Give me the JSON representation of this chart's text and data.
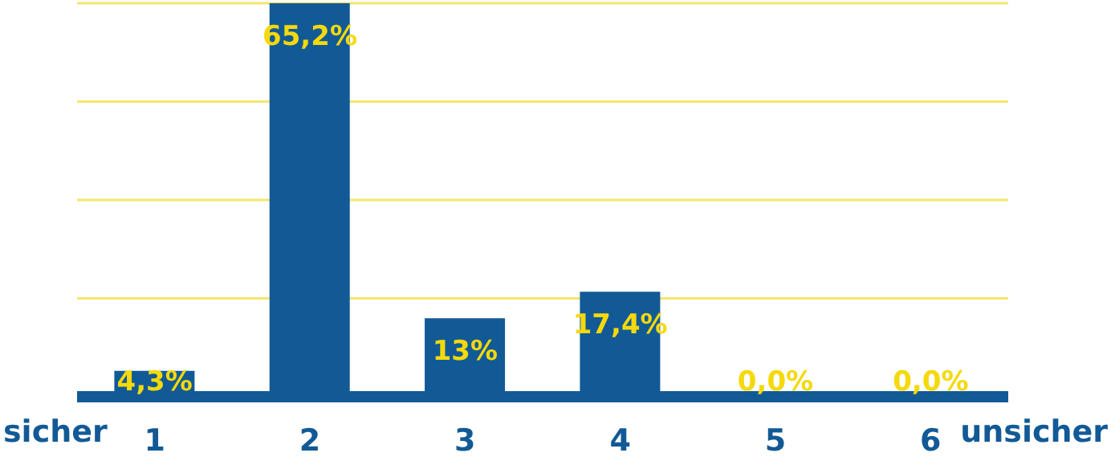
{
  "chart_data": {
    "type": "bar",
    "categories": [
      "1",
      "2",
      "3",
      "4",
      "5",
      "6"
    ],
    "series": [
      {
        "color": "#125a96",
        "values": [
          4.3,
          65.2,
          13,
          17.4,
          0,
          0
        ],
        "value_labels": [
          "4,3%",
          "65,2%",
          "13%",
          "17,4%",
          "0,0%",
          "0,0%"
        ]
      }
    ],
    "ylim": [
      0,
      65.2
    ],
    "yticks": [
      {
        "value": 16.3,
        "label": null
      },
      {
        "value": 32.6,
        "label": null
      },
      {
        "value": 48.9,
        "label": null
      },
      {
        "value": 65.2,
        "label": null
      }
    ],
    "grid": "y",
    "tick_labels": "x",
    "annotations": [
      "sicher",
      "unsicher"
    ]
  }
}
